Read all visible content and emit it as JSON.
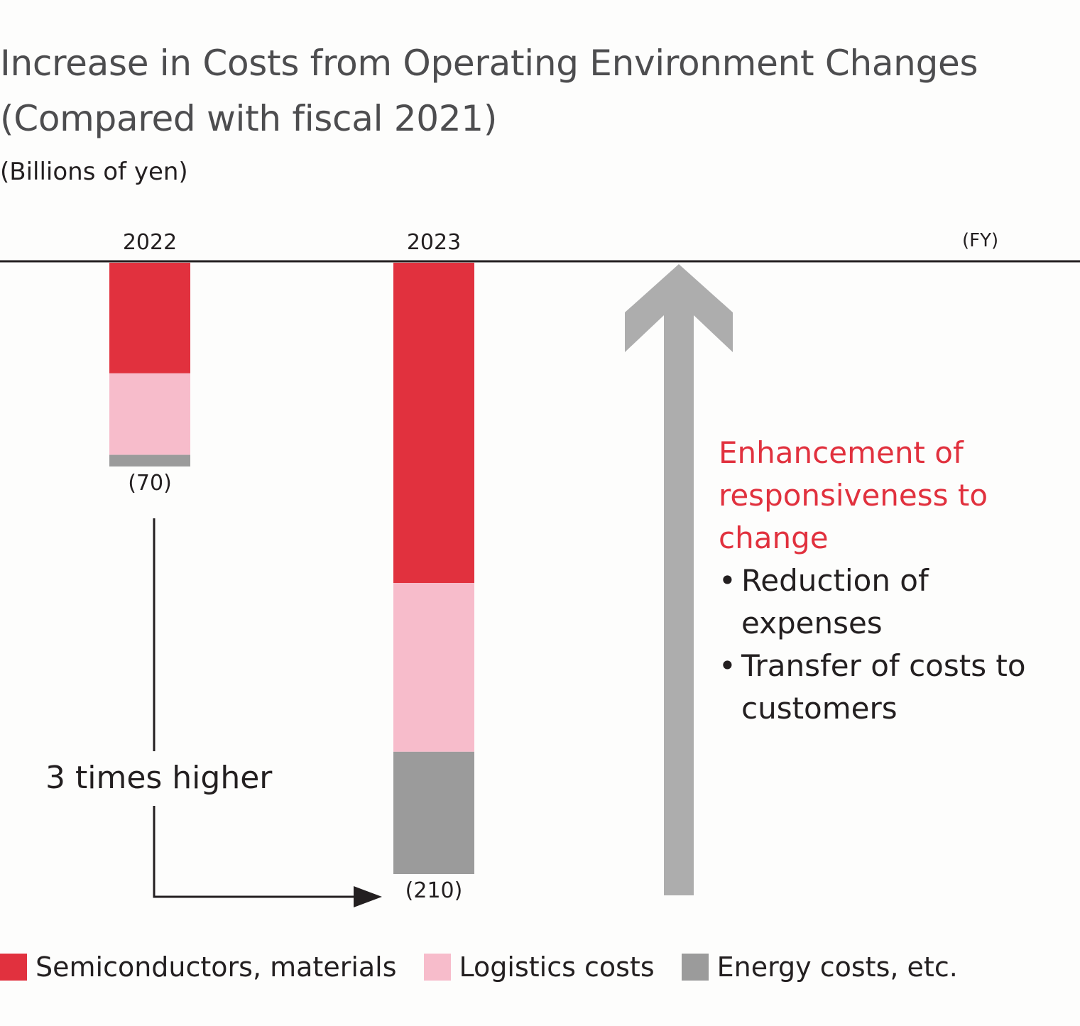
{
  "header": {
    "title_line1": "Increase in Costs from Operating Environment Changes",
    "title_line2": "(Compared with fiscal 2021)",
    "unit": "(Billions of yen)"
  },
  "colors": {
    "semiconductors": "#e1313e",
    "logistics": "#f7bccb",
    "energy": "#9b9b9b",
    "arrow": "#adadad",
    "accent": "#e1313e"
  },
  "annotation": {
    "comparison": "3 times higher",
    "heading": "Enhancement of responsiveness to change",
    "bullet": "•",
    "items": [
      "Reduction of expenses",
      "Transfer of costs to customers"
    ]
  },
  "chart_data": {
    "type": "bar",
    "stacked": true,
    "orientation": "downward from baseline",
    "title": "Increase in Costs from Operating Environment Changes (Compared with fiscal 2021)",
    "ylabel": "(Billions of yen)",
    "xlabel": "(FY)",
    "categories": [
      "2022",
      "2023"
    ],
    "totals": [
      70,
      210
    ],
    "total_labels": [
      "(70)",
      "(210)"
    ],
    "series": [
      {
        "name": "Semiconductors, materials",
        "values": [
          38,
          110
        ]
      },
      {
        "name": "Logistics costs",
        "values": [
          28,
          58
        ]
      },
      {
        "name": "Energy costs, etc.",
        "values": [
          4,
          42
        ]
      }
    ],
    "ylim": [
      0,
      210
    ],
    "grid": false,
    "legend": "bottom"
  }
}
